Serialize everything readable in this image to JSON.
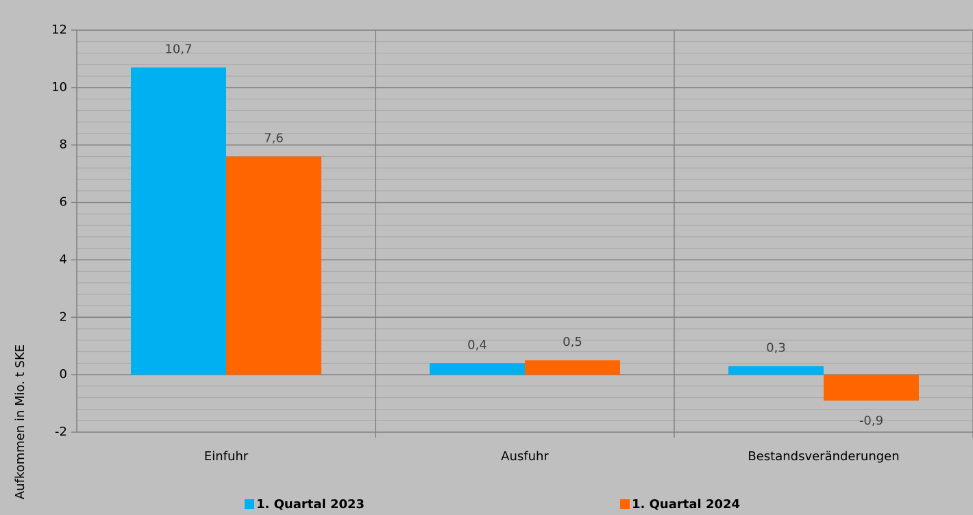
{
  "chart_data": {
    "type": "bar",
    "y_label": "Aufkommen in Mio. t SKE",
    "categories": [
      "Einfuhr",
      "Ausfuhr",
      "Bestandsveränderungen"
    ],
    "series": [
      {
        "name": "1. Quartal 2023",
        "color": "#00b0f0",
        "values": [
          10.7,
          0.4,
          0.3
        ],
        "value_labels": [
          "10,7",
          "0,4",
          "0,3"
        ]
      },
      {
        "name": "1. Quartal 2024",
        "color": "#ff6600",
        "values": [
          7.6,
          0.5,
          -0.9
        ],
        "value_labels": [
          "7,6",
          "0,5",
          "-0,9"
        ]
      }
    ],
    "ylim": [
      -2,
      12
    ],
    "yticks": [
      -2,
      0,
      2,
      4,
      6,
      8,
      10,
      12
    ],
    "grid": true,
    "legend": "bottom"
  }
}
